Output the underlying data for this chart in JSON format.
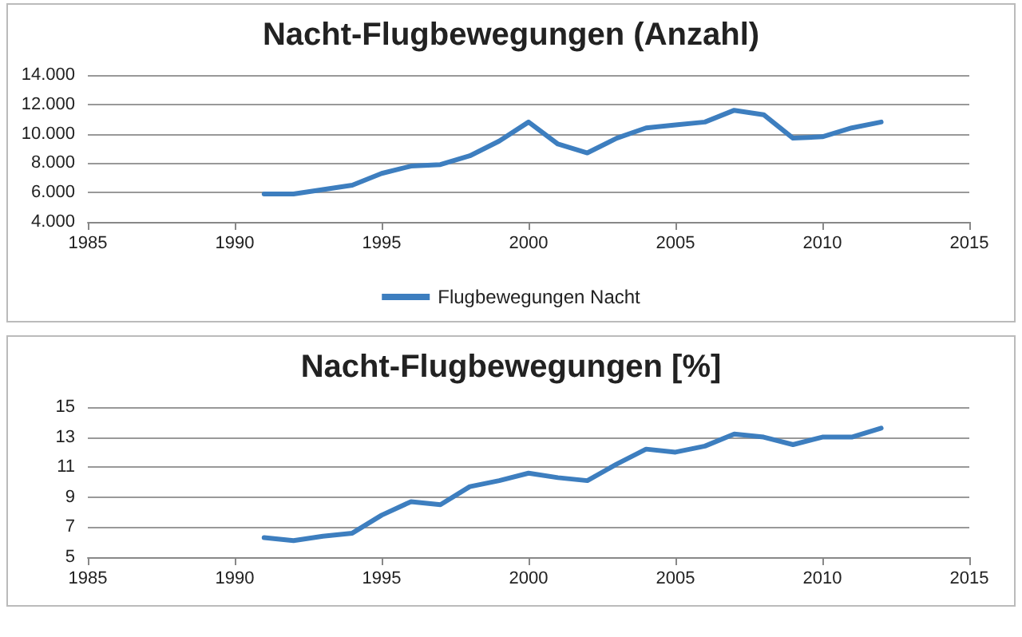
{
  "chart_data": [
    {
      "type": "line",
      "title": "Nacht-Flugbewegungen (Anzahl)",
      "x": [
        1991,
        1992,
        1993,
        1994,
        1995,
        1996,
        1997,
        1998,
        1999,
        2000,
        2001,
        2002,
        2003,
        2004,
        2005,
        2006,
        2007,
        2008,
        2009,
        2010,
        2011,
        2012
      ],
      "series": [
        {
          "name": "Flugbewegungen Nacht",
          "color": "#3d7ebf",
          "values": [
            5900,
            5900,
            6200,
            6500,
            7300,
            7800,
            7900,
            8500,
            9500,
            10800,
            9300,
            8700,
            9700,
            10400,
            10600,
            10800,
            11600,
            11300,
            9700,
            9800,
            10400,
            10800
          ]
        }
      ],
      "xlim": [
        1985,
        2015
      ],
      "xticks": [
        1985,
        1990,
        1995,
        2000,
        2005,
        2010,
        2015
      ],
      "ylim": [
        4000,
        14000
      ],
      "yticks": [
        {
          "value": 4000,
          "label": "4.000"
        },
        {
          "value": 6000,
          "label": "6.000"
        },
        {
          "value": 8000,
          "label": "8.000"
        },
        {
          "value": 10000,
          "label": "10.000"
        },
        {
          "value": 12000,
          "label": "12.000"
        },
        {
          "value": 14000,
          "label": "14.000"
        }
      ],
      "grid": "y",
      "legend": "bottom",
      "marker": "none",
      "line_style": "solid"
    },
    {
      "type": "line",
      "title": "Nacht-Flugbewegungen [%]",
      "x": [
        1991,
        1992,
        1993,
        1994,
        1995,
        1996,
        1997,
        1998,
        1999,
        2000,
        2001,
        2002,
        2003,
        2004,
        2005,
        2006,
        2007,
        2008,
        2009,
        2010,
        2011,
        2012
      ],
      "series": [
        {
          "color": "#3d7ebf",
          "values": [
            6.3,
            6.1,
            6.4,
            6.6,
            7.8,
            8.7,
            8.5,
            9.7,
            10.1,
            10.6,
            10.3,
            10.1,
            11.2,
            12.2,
            12.0,
            12.4,
            13.2,
            13.0,
            12.5,
            13.0,
            13.0,
            13.6
          ]
        }
      ],
      "xlim": [
        1985,
        2015
      ],
      "xticks": [
        1985,
        1990,
        1995,
        2000,
        2005,
        2010,
        2015
      ],
      "ylim": [
        5,
        15
      ],
      "yticks": [
        5,
        7,
        9,
        11,
        13,
        15
      ],
      "grid": "y",
      "legend": false,
      "marker": "none",
      "line_style": "solid"
    }
  ]
}
